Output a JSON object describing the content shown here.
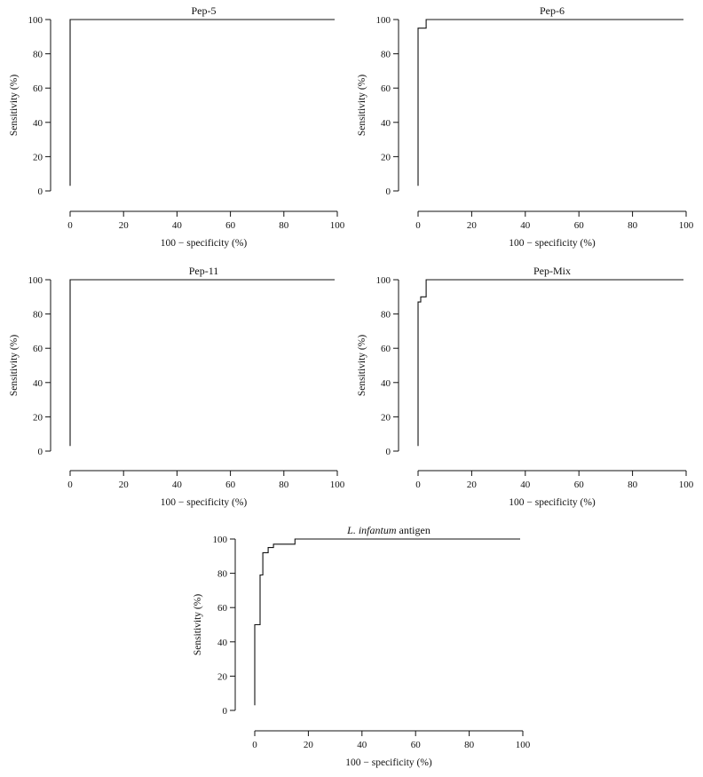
{
  "chart_data": [
    {
      "type": "line",
      "title": "Pep-5",
      "xlabel": "100 − specificity (%)",
      "ylabel": "Sensitivity (%)",
      "xlim": [
        0,
        100
      ],
      "ylim": [
        0,
        100
      ],
      "x_ticks": [
        "0",
        "20",
        "40",
        "60",
        "80",
        "100"
      ],
      "y_ticks": [
        "0",
        "20",
        "40",
        "60",
        "80",
        "100"
      ],
      "grid": false,
      "x": [
        0,
        0,
        99
      ],
      "y": [
        3,
        100,
        100
      ]
    },
    {
      "type": "line",
      "title": "Pep-6",
      "xlabel": "100 − specificity (%)",
      "ylabel": "Sensitivity (%)",
      "xlim": [
        0,
        100
      ],
      "ylim": [
        0,
        100
      ],
      "x_ticks": [
        "0",
        "20",
        "40",
        "60",
        "80",
        "100"
      ],
      "y_ticks": [
        "0",
        "20",
        "40",
        "60",
        "80",
        "100"
      ],
      "grid": false,
      "x": [
        0,
        0,
        3,
        3,
        99
      ],
      "y": [
        3,
        95,
        95,
        100,
        100
      ]
    },
    {
      "type": "line",
      "title": "Pep-11",
      "xlabel": "100 − specificity (%)",
      "ylabel": "Sensitivity (%)",
      "xlim": [
        0,
        100
      ],
      "ylim": [
        0,
        100
      ],
      "x_ticks": [
        "0",
        "20",
        "40",
        "60",
        "80",
        "100"
      ],
      "y_ticks": [
        "0",
        "20",
        "40",
        "60",
        "80",
        "100"
      ],
      "grid": false,
      "x": [
        0,
        0,
        99
      ],
      "y": [
        3,
        100,
        100
      ]
    },
    {
      "type": "line",
      "title": "Pep-Mix",
      "xlabel": "100 − specificity (%)",
      "ylabel": "Sensitivity (%)",
      "xlim": [
        0,
        100
      ],
      "ylim": [
        0,
        100
      ],
      "x_ticks": [
        "0",
        "20",
        "40",
        "60",
        "80",
        "100"
      ],
      "y_ticks": [
        "0",
        "20",
        "40",
        "60",
        "80",
        "100"
      ],
      "grid": false,
      "x": [
        0,
        0,
        1,
        1,
        3,
        3,
        99
      ],
      "y": [
        3,
        87,
        87,
        90,
        90,
        100,
        100
      ]
    },
    {
      "type": "line",
      "title_italic": "L. infantum",
      "title_rest": " antigen",
      "xlabel": "100 − specificity (%)",
      "ylabel": "Sensitivity (%)",
      "xlim": [
        0,
        100
      ],
      "ylim": [
        0,
        100
      ],
      "x_ticks": [
        "0",
        "20",
        "40",
        "60",
        "80",
        "100"
      ],
      "y_ticks": [
        "0",
        "20",
        "40",
        "60",
        "80",
        "100"
      ],
      "grid": false,
      "x": [
        0,
        0,
        2,
        2,
        3,
        3,
        5,
        5,
        7,
        7,
        15,
        15,
        99
      ],
      "y": [
        3,
        50,
        50,
        79,
        79,
        92,
        92,
        95,
        95,
        97,
        97,
        100,
        100
      ]
    }
  ]
}
